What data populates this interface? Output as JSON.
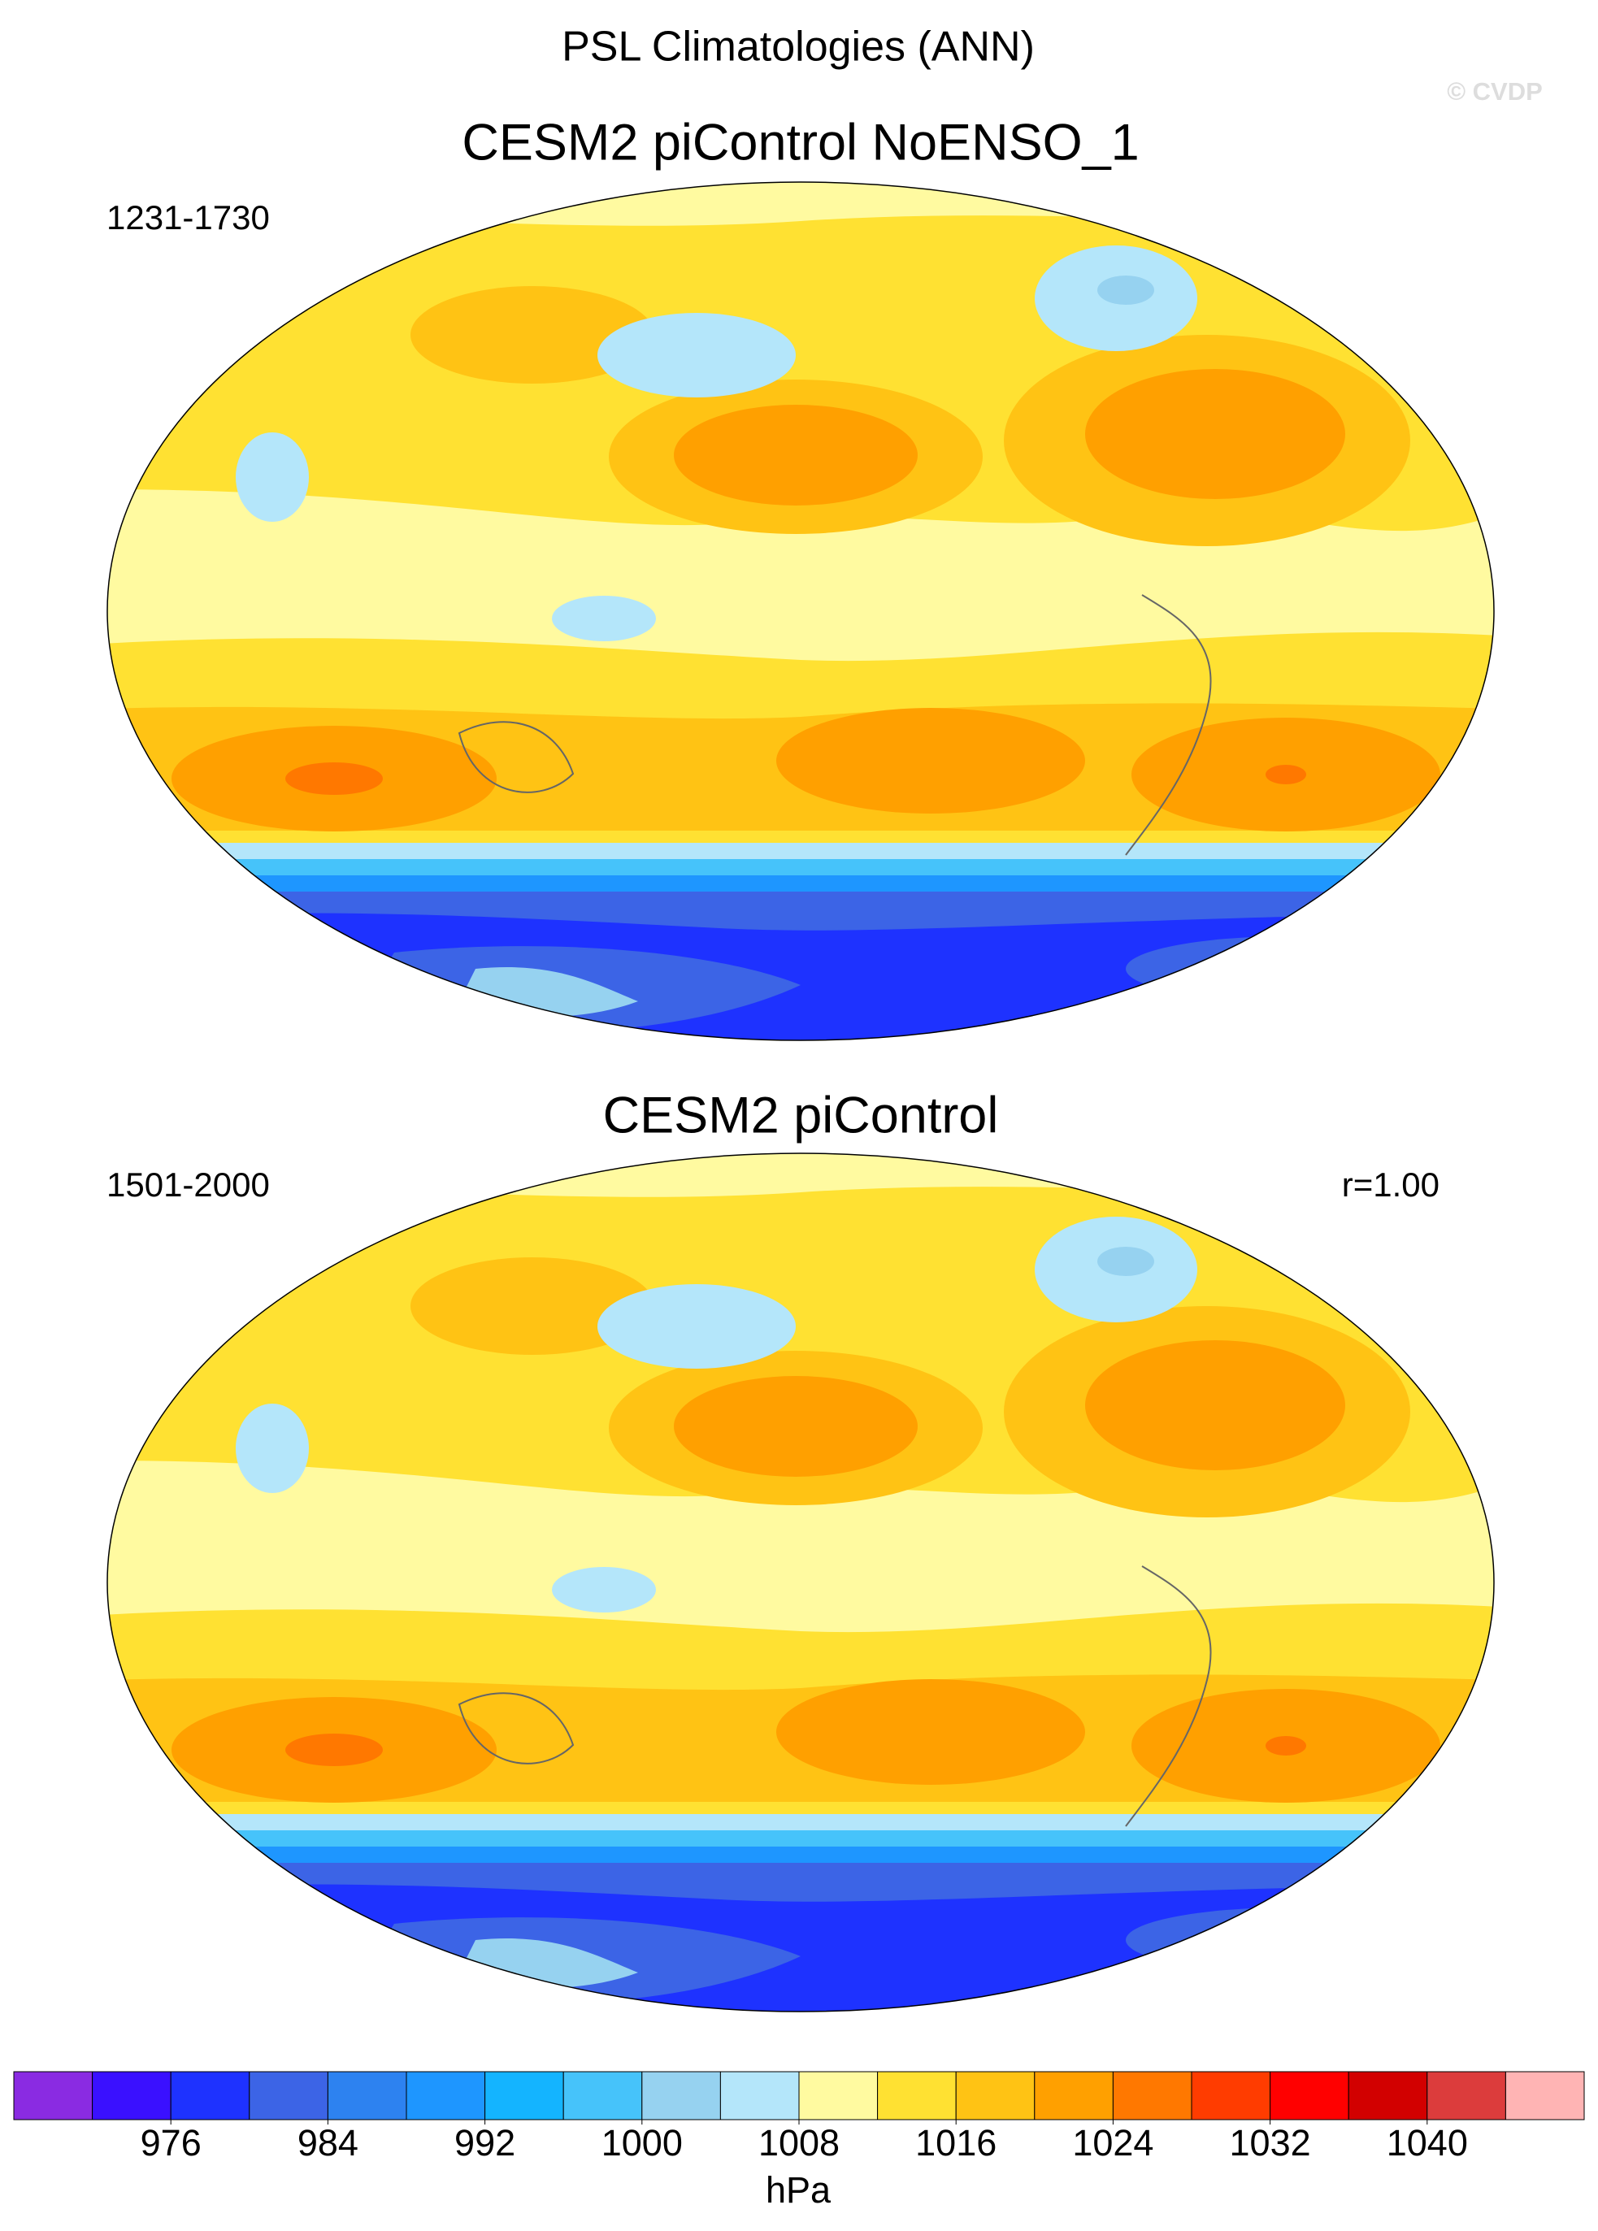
{
  "title": "PSL Climatologies (ANN)",
  "watermark": "© CVDP",
  "panels": [
    {
      "title": "CESM2 piControl NoENSO_1",
      "period": "1231-1730"
    },
    {
      "title": "CESM2 piControl",
      "period": "1501-2000",
      "stat": "r=1.00"
    }
  ],
  "colorbar": {
    "label": "hPa",
    "xlim": [
      968,
      1048
    ],
    "xticks": [
      976,
      984,
      992,
      1000,
      1008,
      1016,
      1024,
      1032,
      1040
    ],
    "colors": [
      "#8a2be2",
      "#3a10ff",
      "#1e32ff",
      "#3c64e6",
      "#2d82f0",
      "#1e96ff",
      "#14b4ff",
      "#46c3fa",
      "#96d2f0",
      "#b4e6fa",
      "#fffaa0",
      "#ffe132",
      "#ffc314",
      "#ffa000",
      "#ff7800",
      "#ff3c00",
      "#ff0000",
      "#d20000",
      "#dc3c3c",
      "#ffb4b4"
    ]
  }
}
